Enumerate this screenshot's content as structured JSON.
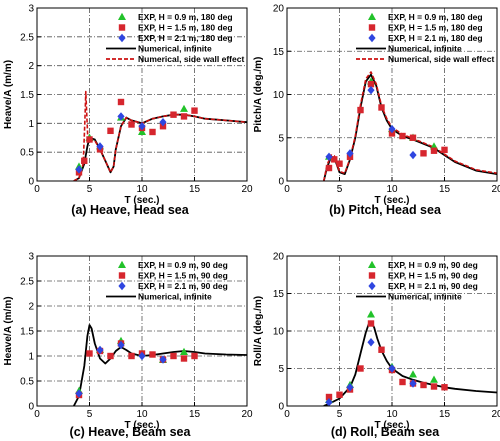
{
  "colors": {
    "exp_09": "#22c22a",
    "exp_15": "#d6262e",
    "exp_21": "#2f46e0",
    "numerical_infinite": "#000000",
    "numerical_side_wall": "#cc1111",
    "grid": "#555555"
  },
  "chart_data": [
    {
      "id": "a",
      "type": "scatter",
      "caption": "(a) Heave, Head sea",
      "xlabel": "T (sec.)",
      "ylabel": "Heave/A (m/m)",
      "xlim": [
        0,
        20
      ],
      "ylim": [
        0,
        3
      ],
      "xticks": [
        0,
        5,
        10,
        15,
        20
      ],
      "yticks": [
        0,
        0.5,
        1,
        1.5,
        2,
        2.5,
        3
      ],
      "ytick_labels": [
        "0",
        "0.5",
        "1",
        "1.5",
        "2",
        "2.5",
        "3"
      ],
      "grid": true,
      "legend_position": "top-right",
      "series": [
        {
          "name": "EXP, H = 0.9 m, 180 deg",
          "kind": "marker",
          "marker": "triangle",
          "color_key": "exp_09",
          "x": [
            4.0,
            5.0,
            6.0,
            8.0,
            10.0,
            14.0
          ],
          "y": [
            0.25,
            0.75,
            0.6,
            1.1,
            0.85,
            1.25
          ]
        },
        {
          "name": "EXP, H = 1.5 m, 180 deg",
          "kind": "marker",
          "marker": "square",
          "color_key": "exp_15",
          "x": [
            4.0,
            4.5,
            5.0,
            6.0,
            7.0,
            8.0,
            9.0,
            10.0,
            11.0,
            12.0,
            13.0,
            14.0,
            15.0
          ],
          "y": [
            0.15,
            0.35,
            0.72,
            0.55,
            0.87,
            1.37,
            0.98,
            0.92,
            0.85,
            0.95,
            1.15,
            1.12,
            1.22
          ]
        },
        {
          "name": "EXP, H = 2.1 m, 180 deg",
          "kind": "marker",
          "marker": "diamond",
          "color_key": "exp_21",
          "x": [
            4.0,
            6.0,
            8.0,
            10.0,
            12.0
          ],
          "y": [
            0.2,
            0.6,
            1.12,
            0.95,
            1.02
          ]
        },
        {
          "name": "Numerical, infinite",
          "kind": "line",
          "dash": false,
          "color_key": "numerical_infinite",
          "x": [
            3.5,
            4.0,
            4.5,
            4.8,
            5.0,
            5.5,
            6.0,
            6.5,
            7.0,
            7.3,
            7.5,
            8.0,
            8.5,
            9.0,
            10.0,
            11.0,
            12.0,
            13.0,
            14.0,
            15.0,
            16.0,
            18.0,
            20.0
          ],
          "y": [
            0.0,
            0.05,
            0.3,
            0.6,
            0.75,
            0.72,
            0.55,
            0.35,
            0.15,
            0.25,
            0.55,
            0.95,
            1.1,
            1.05,
            1.0,
            1.08,
            1.12,
            1.15,
            1.15,
            1.12,
            1.08,
            1.05,
            1.02
          ]
        },
        {
          "name": "Numerical, side wall effect",
          "kind": "line",
          "dash": true,
          "color_key": "numerical_side_wall",
          "x": [
            3.5,
            4.0,
            4.4,
            4.55,
            4.65,
            4.75,
            4.85,
            5.0,
            5.5,
            6.0,
            6.5,
            7.0,
            7.3,
            7.5,
            8.0,
            8.5,
            9.0,
            10.0,
            11.0,
            12.0,
            13.0,
            14.0,
            15.0,
            16.0,
            18.0,
            20.0
          ],
          "y": [
            0.0,
            0.05,
            0.3,
            1.0,
            1.55,
            1.1,
            0.7,
            0.72,
            0.7,
            0.55,
            0.35,
            0.15,
            0.25,
            0.55,
            0.95,
            1.1,
            1.05,
            1.0,
            1.08,
            1.12,
            1.15,
            1.15,
            1.12,
            1.08,
            1.05,
            1.02
          ]
        }
      ]
    },
    {
      "id": "b",
      "type": "scatter",
      "caption": "(b) Pitch, Head sea",
      "xlabel": "T (sec.)",
      "ylabel": "Pitch/A (deg./m)",
      "xlim": [
        0,
        20
      ],
      "ylim": [
        0,
        20
      ],
      "xticks": [
        0,
        5,
        10,
        15,
        20
      ],
      "yticks": [
        0,
        5,
        10,
        15,
        20
      ],
      "ytick_labels": [
        "0",
        "5",
        "10",
        "15",
        "20"
      ],
      "grid": true,
      "legend_position": "top-right",
      "series": [
        {
          "name": "EXP, H = 0.9 m, 180 deg",
          "kind": "marker",
          "marker": "triangle",
          "color_key": "exp_09",
          "x": [
            4.0,
            8.0,
            10.0,
            12.0,
            14.0
          ],
          "y": [
            2.8,
            11.5,
            6.0,
            5.0,
            4.0
          ]
        },
        {
          "name": "EXP, H = 1.5 m, 180 deg",
          "kind": "marker",
          "marker": "square",
          "color_key": "exp_15",
          "x": [
            4.0,
            4.5,
            5.0,
            6.0,
            7.0,
            8.0,
            9.0,
            10.0,
            11.0,
            12.0,
            13.0,
            14.0,
            15.0
          ],
          "y": [
            1.5,
            2.5,
            2.0,
            2.8,
            8.2,
            11.2,
            8.5,
            5.5,
            5.2,
            5.0,
            3.2,
            3.5,
            3.6
          ]
        },
        {
          "name": "EXP, H = 2.1 m, 180 deg",
          "kind": "marker",
          "marker": "diamond",
          "color_key": "exp_21",
          "x": [
            4.0,
            6.0,
            8.0,
            10.0,
            12.0
          ],
          "y": [
            2.8,
            3.2,
            10.5,
            6.0,
            3.0
          ]
        },
        {
          "name": "Numerical, infinite",
          "kind": "line",
          "dash": false,
          "color_key": "numerical_infinite",
          "x": [
            3.5,
            3.8,
            4.2,
            4.5,
            5.0,
            5.5,
            6.0,
            6.5,
            7.0,
            7.5,
            8.0,
            8.5,
            9.0,
            9.5,
            10.0,
            11.0,
            12.0,
            13.0,
            14.0,
            15.0,
            16.0,
            18.0,
            20.0
          ],
          "y": [
            0.0,
            1.5,
            2.8,
            2.7,
            1.0,
            0.8,
            2.5,
            5.0,
            8.5,
            11.5,
            12.3,
            11.0,
            8.5,
            7.0,
            6.0,
            5.2,
            4.8,
            4.3,
            3.8,
            3.0,
            2.2,
            1.2,
            0.8
          ]
        },
        {
          "name": "Numerical, side wall effect",
          "kind": "line",
          "dash": true,
          "color_key": "numerical_side_wall",
          "x": [
            3.5,
            3.8,
            4.2,
            4.5,
            5.0,
            5.5,
            6.0,
            6.5,
            7.0,
            7.5,
            8.0,
            8.5,
            9.0,
            9.5,
            10.0,
            11.0,
            12.0,
            13.0,
            14.0,
            15.0,
            16.0,
            18.0,
            20.0
          ],
          "y": [
            0.0,
            1.8,
            3.0,
            2.9,
            1.1,
            0.9,
            2.6,
            5.2,
            8.8,
            11.8,
            12.6,
            11.2,
            8.7,
            7.2,
            6.2,
            5.4,
            4.9,
            4.4,
            3.9,
            3.1,
            2.3,
            1.3,
            0.9
          ]
        }
      ]
    },
    {
      "id": "c",
      "type": "scatter",
      "caption": "(c) Heave, Beam sea",
      "xlabel": "T (sec.)",
      "ylabel": "Heave/A (m/m)",
      "xlim": [
        0,
        20
      ],
      "ylim": [
        0,
        3
      ],
      "xticks": [
        0,
        5,
        10,
        15,
        20
      ],
      "yticks": [
        0,
        0.5,
        1,
        1.5,
        2,
        2.5,
        3
      ],
      "ytick_labels": [
        "0",
        "0.5",
        "1",
        "1.5",
        "2",
        "2.5",
        "3"
      ],
      "grid": true,
      "legend_position": "top-right",
      "series": [
        {
          "name": "EXP, H = 0.9 m, 90 deg",
          "kind": "marker",
          "marker": "triangle",
          "color_key": "exp_09",
          "x": [
            4.0,
            6.0,
            8.0,
            10.0,
            12.0,
            14.0
          ],
          "y": [
            0.3,
            1.12,
            1.3,
            1.05,
            0.92,
            1.08
          ]
        },
        {
          "name": "EXP, H = 1.5 m, 90 deg",
          "kind": "marker",
          "marker": "square",
          "color_key": "exp_15",
          "x": [
            4.0,
            5.0,
            6.0,
            7.0,
            8.0,
            9.0,
            10.0,
            11.0,
            12.0,
            13.0,
            14.0,
            15.0
          ],
          "y": [
            0.22,
            1.05,
            1.1,
            1.0,
            1.25,
            1.0,
            1.05,
            1.03,
            0.93,
            1.0,
            0.95,
            1.0
          ]
        },
        {
          "name": "EXP, H = 2.1 m, 90 deg",
          "kind": "marker",
          "marker": "diamond",
          "color_key": "exp_21",
          "x": [
            4.0,
            6.0,
            8.0,
            10.0,
            12.0
          ],
          "y": [
            0.25,
            1.12,
            1.22,
            1.0,
            0.93
          ]
        },
        {
          "name": "Numerical, infinite",
          "kind": "line",
          "dash": false,
          "color_key": "numerical_infinite",
          "x": [
            3.5,
            4.0,
            4.5,
            4.8,
            5.0,
            5.2,
            5.5,
            6.0,
            6.5,
            7.0,
            7.5,
            8.0,
            8.5,
            9.0,
            10.0,
            11.0,
            12.0,
            13.0,
            14.0,
            15.0,
            16.0,
            18.0,
            20.0
          ],
          "y": [
            0.0,
            0.2,
            0.8,
            1.4,
            1.62,
            1.55,
            1.25,
            0.95,
            0.85,
            0.95,
            1.1,
            1.18,
            1.12,
            1.05,
            1.0,
            1.02,
            1.05,
            1.08,
            1.1,
            1.08,
            1.05,
            1.03,
            1.02
          ]
        }
      ]
    },
    {
      "id": "d",
      "type": "scatter",
      "caption": "(d) Roll, Beam sea",
      "xlabel": "T (sec.)",
      "ylabel": "Roll/A (deg./m)",
      "xlim": [
        0,
        20
      ],
      "ylim": [
        0,
        20
      ],
      "xticks": [
        0,
        5,
        10,
        15,
        20
      ],
      "yticks": [
        0,
        5,
        10,
        15,
        20
      ],
      "ytick_labels": [
        "0",
        "5",
        "10",
        "15",
        "20"
      ],
      "grid": true,
      "legend_position": "top-right",
      "series": [
        {
          "name": "EXP, H = 0.9 m, 90 deg",
          "kind": "marker",
          "marker": "triangle",
          "color_key": "exp_09",
          "x": [
            4.0,
            6.0,
            8.0,
            10.0,
            12.0,
            14.0
          ],
          "y": [
            0.8,
            2.8,
            12.2,
            5.2,
            4.2,
            3.5
          ]
        },
        {
          "name": "EXP, H = 1.5 m, 90 deg",
          "kind": "marker",
          "marker": "square",
          "color_key": "exp_15",
          "x": [
            4.0,
            5.0,
            6.0,
            7.0,
            8.0,
            9.0,
            10.0,
            11.0,
            12.0,
            13.0,
            14.0,
            15.0
          ],
          "y": [
            1.2,
            1.5,
            2.2,
            5.0,
            11.0,
            7.5,
            4.8,
            3.2,
            3.0,
            2.8,
            2.6,
            2.5
          ]
        },
        {
          "name": "EXP, H = 2.1 m, 90 deg",
          "kind": "marker",
          "marker": "diamond",
          "color_key": "exp_21",
          "x": [
            4.0,
            6.0,
            8.0,
            10.0,
            12.0
          ],
          "y": [
            0.5,
            2.5,
            8.5,
            5.0,
            3.0
          ]
        },
        {
          "name": "Numerical, infinite",
          "kind": "line",
          "dash": false,
          "color_key": "numerical_infinite",
          "x": [
            3.5,
            4.0,
            5.0,
            6.0,
            6.5,
            7.0,
            7.5,
            7.8,
            8.0,
            8.3,
            8.6,
            9.0,
            9.5,
            10.0,
            11.0,
            12.0,
            13.0,
            14.0,
            15.0,
            16.0,
            18.0,
            20.0
          ],
          "y": [
            0.0,
            0.3,
            1.0,
            2.5,
            4.2,
            7.0,
            9.8,
            11.0,
            11.2,
            10.5,
            9.0,
            7.4,
            6.0,
            5.0,
            4.0,
            3.5,
            3.1,
            2.8,
            2.5,
            2.3,
            2.0,
            1.8
          ]
        }
      ]
    }
  ]
}
